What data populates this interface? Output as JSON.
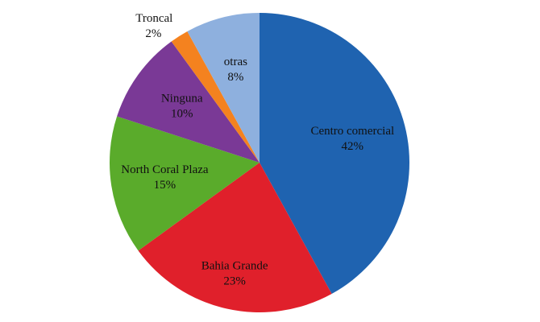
{
  "chart_data": {
    "type": "pie",
    "categories": [
      "Centro comercial",
      "Bahia Grande",
      "North Coral Plaza",
      "Ninguna",
      "Troncal",
      "otras"
    ],
    "values": [
      42,
      23,
      15,
      10,
      2,
      8
    ],
    "value_labels": [
      "42%",
      "23%",
      "15%",
      "10%",
      "2%",
      "8%"
    ],
    "colors": [
      "#1f63b0",
      "#e0202b",
      "#5aab2b",
      "#7a3996",
      "#f4821f",
      "#8eb0de"
    ]
  }
}
